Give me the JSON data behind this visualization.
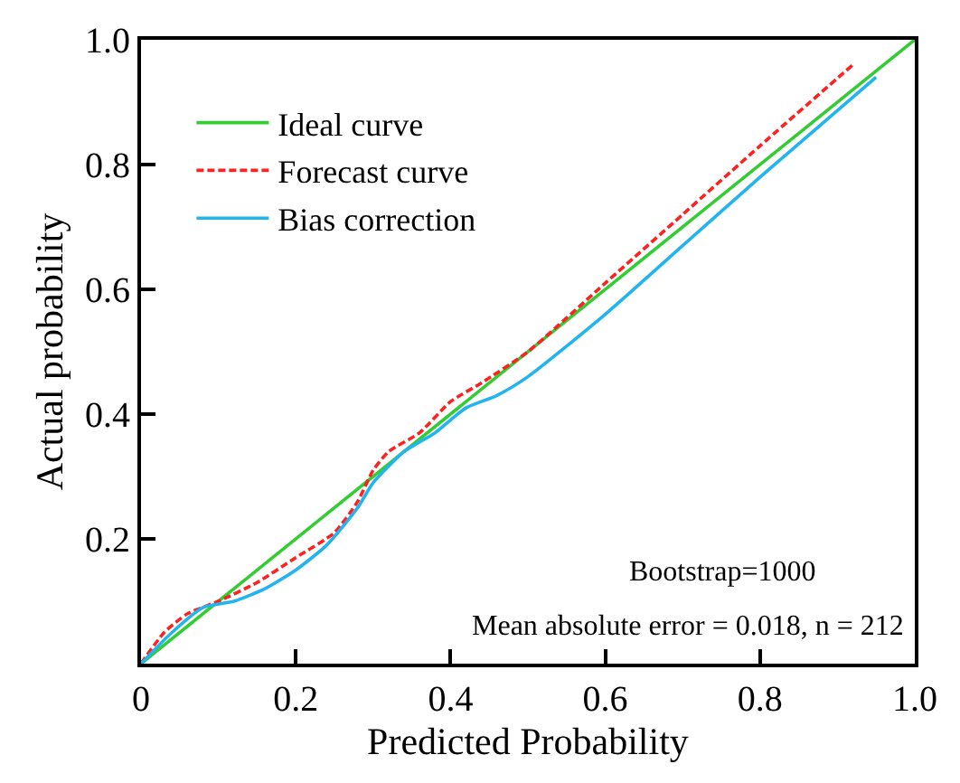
{
  "chart_data": {
    "type": "line",
    "xlabel": "Predicted Probability",
    "ylabel": "Actual probability",
    "xlim": [
      0,
      1
    ],
    "ylim": [
      0,
      1
    ],
    "xticks": [
      0,
      0.2,
      0.4,
      0.6,
      0.8,
      {
        "value": 1,
        "label": "1.0"
      }
    ],
    "yticks": [
      {
        "value": 0.2,
        "label": "0.2"
      },
      0.4,
      0.6,
      0.8,
      {
        "value": 1,
        "label": "1.0"
      }
    ],
    "legend": "top left",
    "marker": "none",
    "series": [
      {
        "name": "Ideal curve",
        "color": "#33cc33",
        "line_style": "solid",
        "x": [
          0,
          1
        ],
        "values": [
          0,
          1
        ]
      },
      {
        "name": "Forecast curve",
        "color": "#ff2020",
        "line_style": "dashed",
        "x": [
          0,
          0.03,
          0.06,
          0.1,
          0.15,
          0.2,
          0.25,
          0.28,
          0.3,
          0.32,
          0.36,
          0.4,
          0.44,
          0.5,
          0.6,
          0.7,
          0.8,
          0.92
        ],
        "values": [
          0,
          0.05,
          0.08,
          0.1,
          0.13,
          0.17,
          0.21,
          0.26,
          0.31,
          0.34,
          0.37,
          0.42,
          0.45,
          0.5,
          0.61,
          0.72,
          0.83,
          0.96
        ]
      },
      {
        "name": "Bias correction",
        "color": "#22b4ee",
        "line_style": "solid",
        "x": [
          0,
          0.04,
          0.08,
          0.12,
          0.16,
          0.2,
          0.24,
          0.28,
          0.3,
          0.34,
          0.38,
          0.42,
          0.46,
          0.5,
          0.6,
          0.7,
          0.8,
          0.95
        ],
        "values": [
          0,
          0.05,
          0.09,
          0.1,
          0.12,
          0.15,
          0.19,
          0.25,
          0.29,
          0.34,
          0.37,
          0.41,
          0.43,
          0.46,
          0.56,
          0.67,
          0.78,
          0.94
        ]
      }
    ],
    "annotations": [
      "Bootstrap=1000",
      "Mean absolute error = 0.018, n = 212"
    ]
  }
}
